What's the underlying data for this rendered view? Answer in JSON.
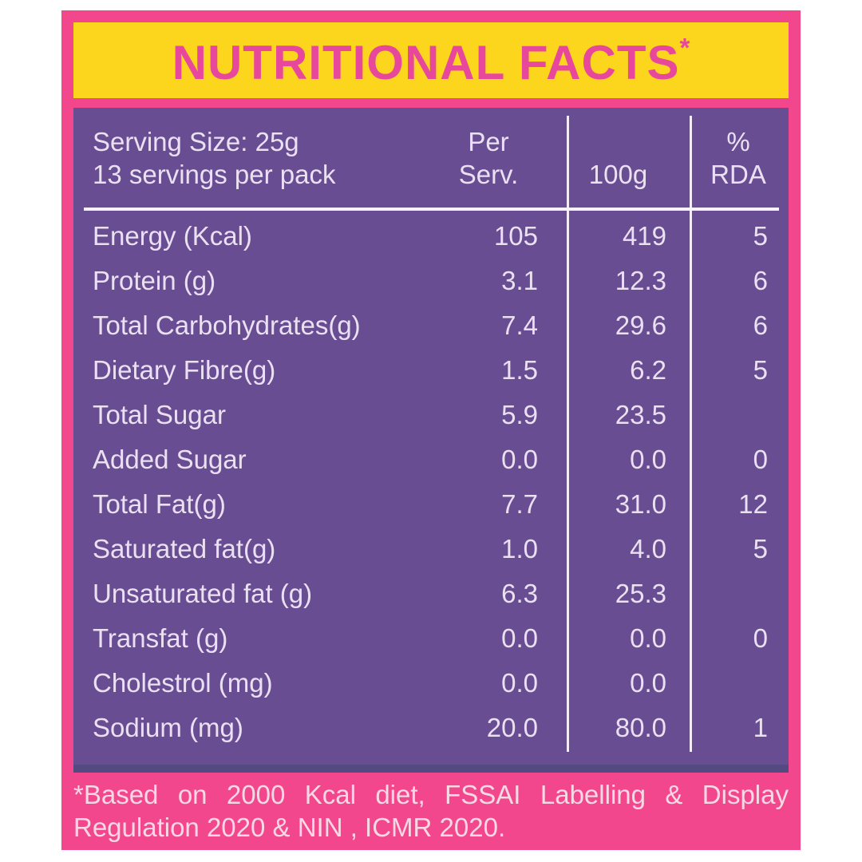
{
  "header": {
    "title": "NUTRITIONAL FACTS",
    "asterisk": "*"
  },
  "table": {
    "serving_line1": "Serving Size: 25g",
    "serving_line2": "13 servings per pack",
    "columns": {
      "per_serv_line1": "Per",
      "per_serv_line2": "Serv.",
      "per_100g": "100g",
      "rda_line1": "%",
      "rda_line2": "RDA"
    },
    "rows": [
      {
        "label": "Energy (Kcal)",
        "per_serv": "105",
        "per_100g": "419",
        "rda": "5"
      },
      {
        "label": "Protein (g)",
        "per_serv": "3.1",
        "per_100g": "12.3",
        "rda": "6"
      },
      {
        "label": "Total Carbohydrates(g)",
        "per_serv": "7.4",
        "per_100g": "29.6",
        "rda": "6"
      },
      {
        "label": "Dietary Fibre(g)",
        "per_serv": "1.5",
        "per_100g": "6.2",
        "rda": "5"
      },
      {
        "label": "Total Sugar",
        "per_serv": "5.9",
        "per_100g": "23.5",
        "rda": ""
      },
      {
        "label": "Added Sugar",
        "per_serv": "0.0",
        "per_100g": "0.0",
        "rda": "0"
      },
      {
        "label": "Total Fat(g)",
        "per_serv": "7.7",
        "per_100g": "31.0",
        "rda": "12"
      },
      {
        "label": "Saturated fat(g)",
        "per_serv": "1.0",
        "per_100g": "4.0",
        "rda": "5"
      },
      {
        "label": "Unsaturated fat (g)",
        "per_serv": "6.3",
        "per_100g": "25.3",
        "rda": ""
      },
      {
        "label": "Transfat (g)",
        "per_serv": "0.0",
        "per_100g": "0.0",
        "rda": "0"
      },
      {
        "label": "Cholestrol (mg)",
        "per_serv": "0.0",
        "per_100g": "0.0",
        "rda": ""
      },
      {
        "label": "Sodium (mg)",
        "per_serv": "20.0",
        "per_100g": "80.0",
        "rda": "1"
      }
    ]
  },
  "footer": {
    "line1": "*Based on 2000 Kcal diet, FSSAI Labelling & Display",
    "line2": "Regulation 2020 & NIN , ICMR 2020."
  },
  "colors": {
    "frame_pink": "#F2478C",
    "band_yellow": "#FCD51D",
    "title_pink": "#E8489B",
    "panel_purple": "#684D92",
    "panel_bottom_strip": "#544A82",
    "table_text": "#EBE0F2",
    "rule_lines": "#F3ECF7",
    "footer_text": "#F7D8E5",
    "background": "#FFFFFF"
  }
}
